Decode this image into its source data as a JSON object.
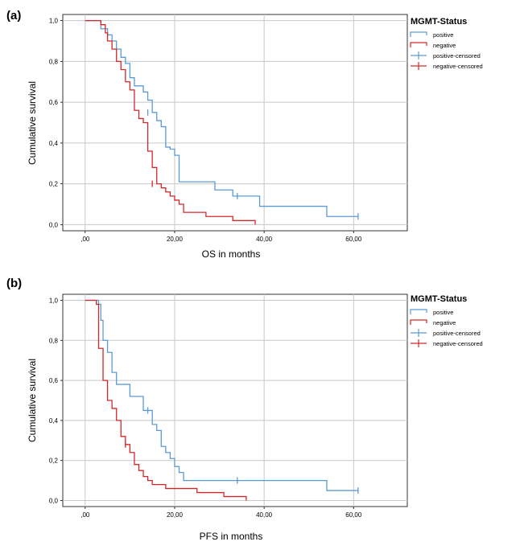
{
  "chart_data": [
    {
      "panel_label": "(a)",
      "type": "line",
      "step": true,
      "title": "",
      "xlabel": "OS in months",
      "ylabel": "Cumulative survival",
      "xlim": [
        -5,
        72
      ],
      "ylim": [
        -0.03,
        1.03
      ],
      "xticks": [
        0,
        20,
        40,
        60
      ],
      "xtick_labels": [
        ",00",
        "20,00",
        "40,00",
        "60,00"
      ],
      "yticks": [
        0,
        0.2,
        0.4,
        0.6,
        0.8,
        1.0
      ],
      "ytick_labels": [
        "0,0",
        "0,2",
        "0,4",
        "0,6",
        "0,8",
        "1,0"
      ],
      "grid": true,
      "legend": {
        "title": "MGMT-Status",
        "position": "top-right",
        "entries": [
          "positive",
          "negative",
          "positive-censored",
          "negative-censored"
        ]
      },
      "series": [
        {
          "name": "positive",
          "color": "#5b9bd5",
          "x": [
            0,
            3.5,
            5,
            6,
            7,
            8,
            9,
            10,
            11,
            13,
            14,
            15,
            16,
            17,
            18,
            19,
            20,
            21,
            29,
            33,
            39,
            54,
            61
          ],
          "y": [
            1.0,
            0.96,
            0.93,
            0.9,
            0.86,
            0.82,
            0.79,
            0.72,
            0.68,
            0.65,
            0.61,
            0.55,
            0.51,
            0.48,
            0.38,
            0.37,
            0.34,
            0.21,
            0.17,
            0.14,
            0.09,
            0.04,
            0.04
          ],
          "censored": [
            {
              "x": 14,
              "y": 0.55
            },
            {
              "x": 34,
              "y": 0.14
            },
            {
              "x": 61,
              "y": 0.04
            }
          ]
        },
        {
          "name": "negative",
          "color": "#d62728",
          "x": [
            0,
            3.5,
            4.5,
            5,
            6,
            7,
            8,
            9,
            10,
            11,
            12,
            13,
            14,
            15,
            16,
            17,
            18,
            19,
            20,
            21,
            22,
            27,
            33,
            38
          ],
          "y": [
            1.0,
            0.98,
            0.94,
            0.9,
            0.86,
            0.8,
            0.76,
            0.7,
            0.66,
            0.56,
            0.52,
            0.5,
            0.36,
            0.28,
            0.2,
            0.18,
            0.16,
            0.14,
            0.12,
            0.1,
            0.06,
            0.04,
            0.02,
            0.0
          ],
          "censored": [
            {
              "x": 15,
              "y": 0.2
            }
          ]
        }
      ]
    },
    {
      "panel_label": "(b)",
      "type": "line",
      "step": true,
      "title": "",
      "xlabel": "PFS  in months",
      "ylabel": "Cumulative survival",
      "xlim": [
        -5,
        72
      ],
      "ylim": [
        -0.03,
        1.03
      ],
      "xticks": [
        0,
        20,
        40,
        60
      ],
      "xtick_labels": [
        ",00",
        "20,00",
        "40,00",
        "60,00"
      ],
      "yticks": [
        0,
        0.2,
        0.4,
        0.6,
        0.8,
        1.0
      ],
      "ytick_labels": [
        "0,0",
        "0,2",
        "0,4",
        "0,6",
        "0,8",
        "1,0"
      ],
      "grid": true,
      "legend": {
        "title": "MGMT-Status",
        "position": "top-right",
        "entries": [
          "positive",
          "negative",
          "positive-censored",
          "negative-censored"
        ]
      },
      "series": [
        {
          "name": "positive",
          "color": "#5b9bd5",
          "x": [
            0,
            3,
            3.5,
            4,
            5,
            6,
            7,
            10,
            13,
            15,
            16,
            17,
            18,
            19,
            20,
            21,
            22,
            54,
            61
          ],
          "y": [
            1.0,
            0.98,
            0.9,
            0.8,
            0.74,
            0.64,
            0.58,
            0.52,
            0.45,
            0.38,
            0.35,
            0.27,
            0.24,
            0.21,
            0.17,
            0.14,
            0.1,
            0.05,
            0.05
          ],
          "censored": [
            {
              "x": 14,
              "y": 0.45
            },
            {
              "x": 34,
              "y": 0.1
            },
            {
              "x": 61,
              "y": 0.05
            }
          ]
        },
        {
          "name": "negative",
          "color": "#d62728",
          "x": [
            0,
            2.5,
            3,
            4,
            5,
            6,
            7,
            8,
            9,
            10,
            11,
            12,
            13,
            14,
            15,
            18,
            25,
            31,
            36
          ],
          "y": [
            1.0,
            0.98,
            0.76,
            0.6,
            0.5,
            0.46,
            0.4,
            0.32,
            0.28,
            0.24,
            0.18,
            0.15,
            0.12,
            0.1,
            0.08,
            0.06,
            0.04,
            0.02,
            0.0
          ],
          "censored": [
            {
              "x": 9,
              "y": 0.28
            }
          ]
        }
      ]
    }
  ]
}
